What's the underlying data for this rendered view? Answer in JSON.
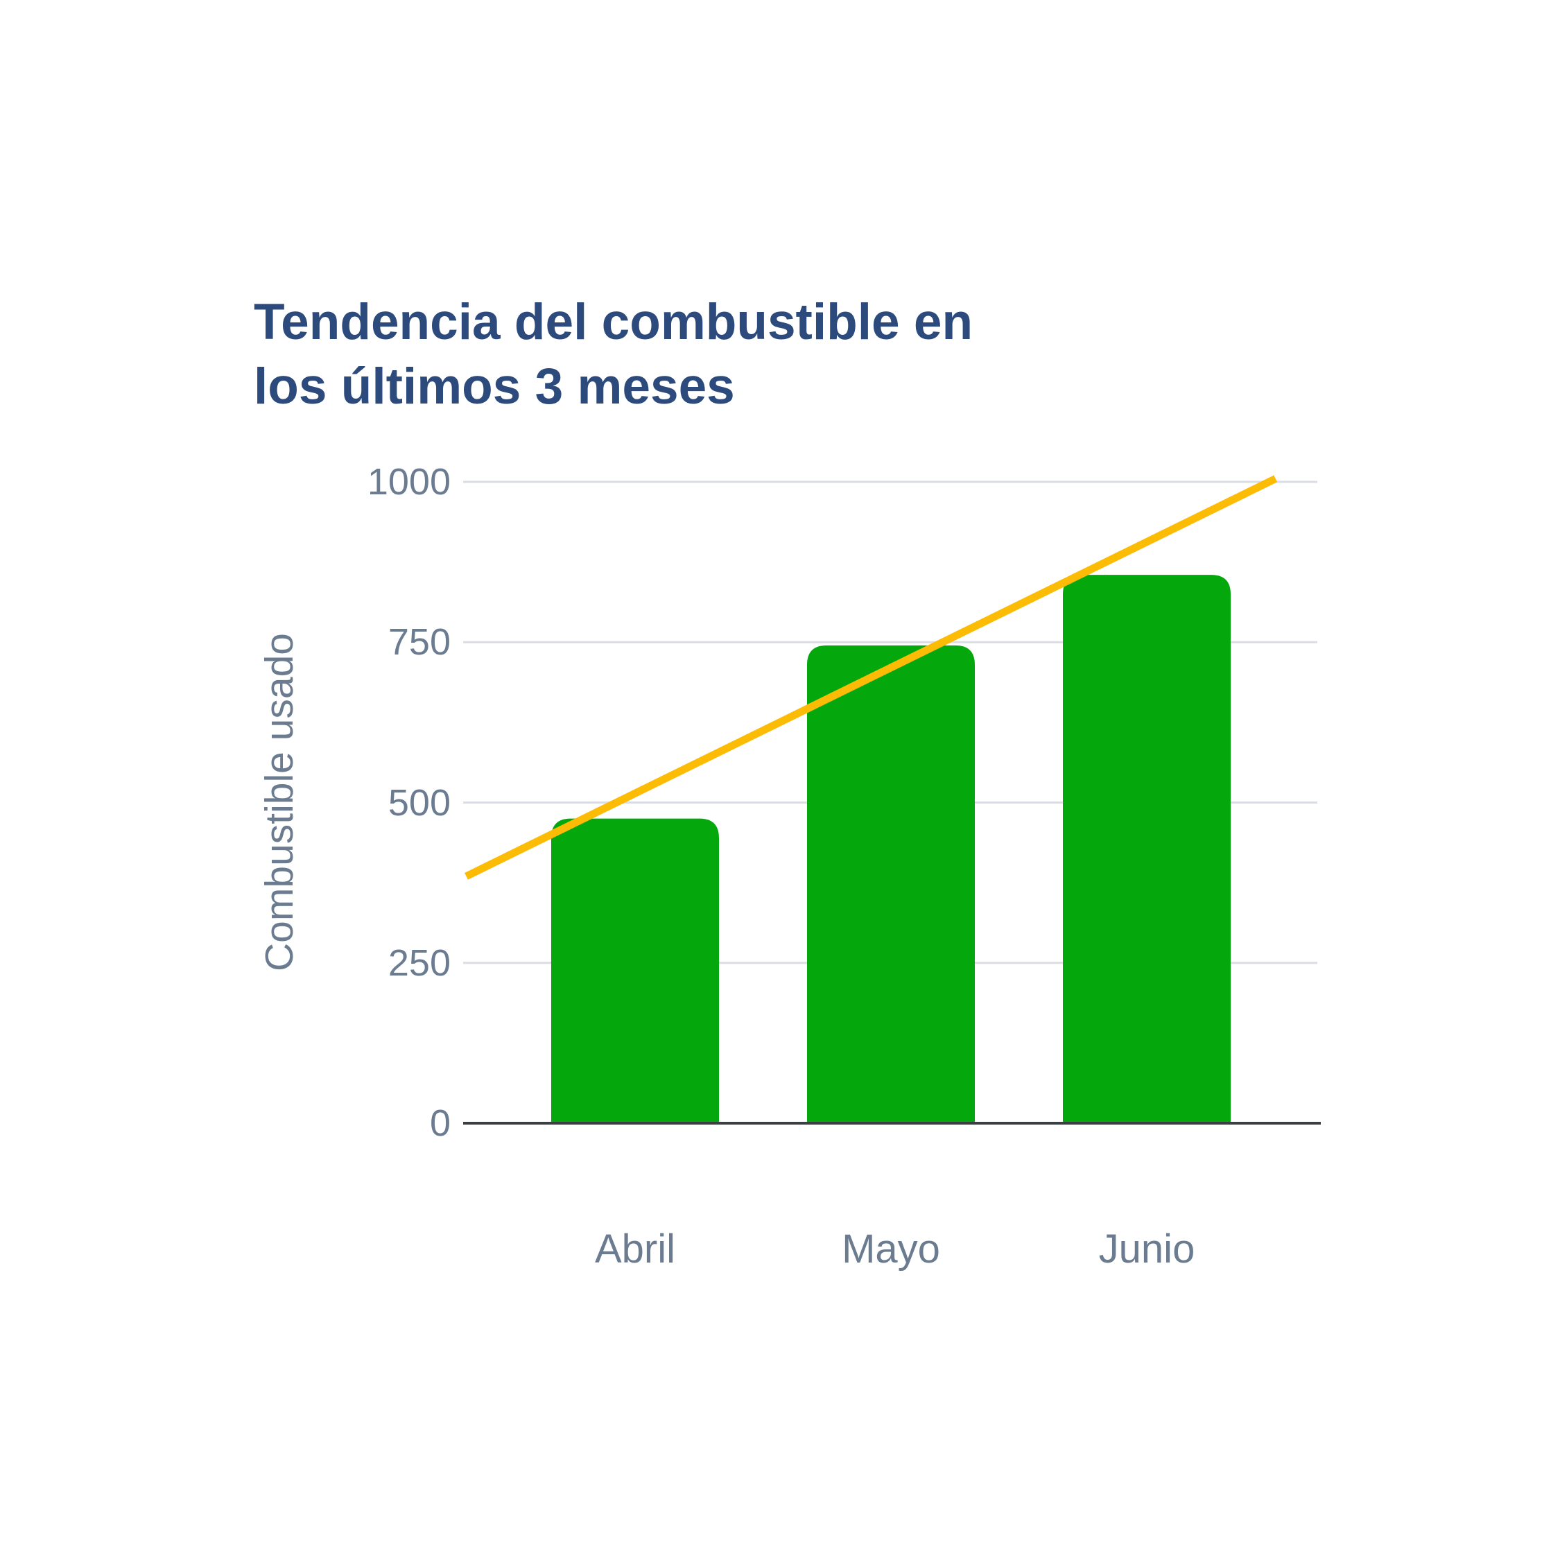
{
  "page": {
    "background_color": "#ffffff"
  },
  "chart": {
    "title_lines": [
      "Tendencia del combustible en",
      "los últimos 3 meses"
    ],
    "title_color": "#2d4a7c",
    "axis_text_color": "#6b7b90",
    "gridline_color": "#dadee4",
    "baseline_color": "#3c3f42"
  },
  "chart_data": {
    "type": "bar",
    "title": "Tendencia del combustible en los últimos 3 meses",
    "xlabel": "",
    "ylabel": "Combustible usado",
    "categories": [
      "Abril",
      "Mayo",
      "Junio"
    ],
    "series": [
      {
        "name": "Combustible usado",
        "type": "bar",
        "values": [
          475,
          745,
          855
        ],
        "color": "#04a80d"
      },
      {
        "name": "Tendencia",
        "type": "line",
        "color": "#fcbb04",
        "trend_start_value": 385,
        "trend_end_value": 1005
      }
    ],
    "yticks": [
      0,
      250,
      500,
      750,
      1000
    ],
    "ylim": [
      0,
      1000
    ],
    "grid": "horizontal",
    "legend_position": "none"
  }
}
